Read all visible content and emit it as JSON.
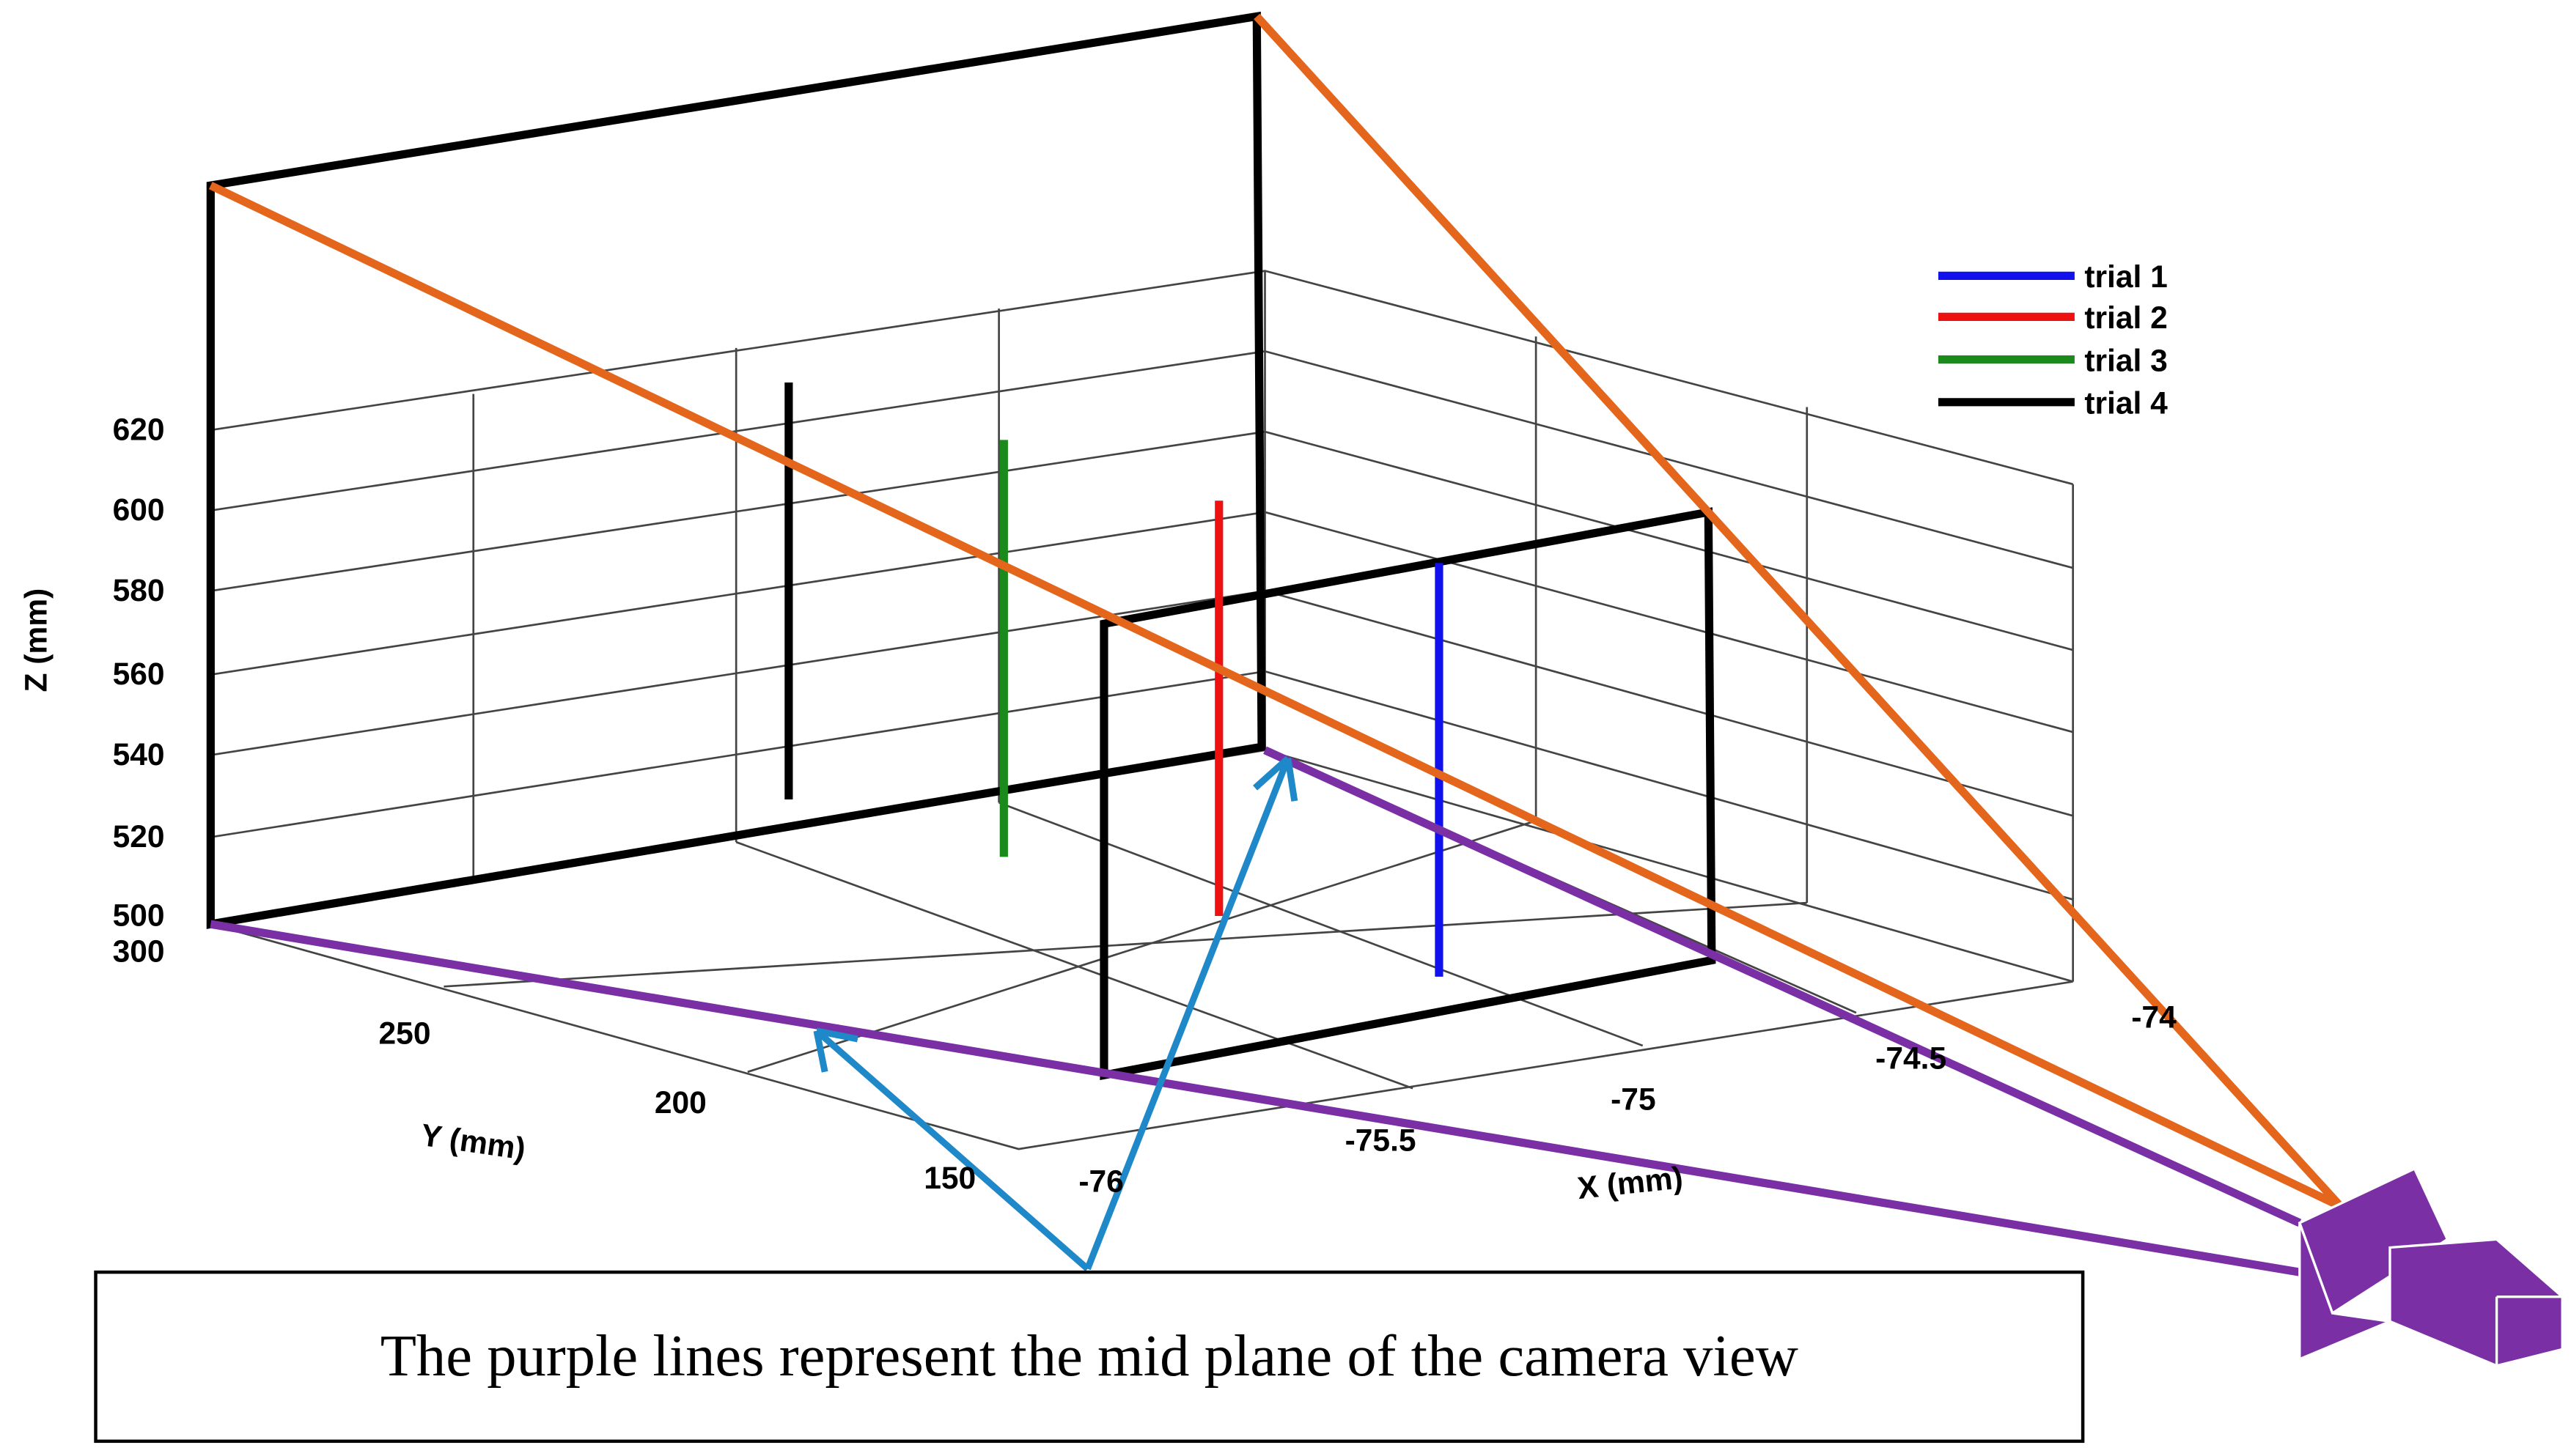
{
  "axes": {
    "z_label": "Z (mm)",
    "y_label": "Y (mm)",
    "x_label": "X (mm)",
    "z_ticks": [
      "620",
      "600",
      "580",
      "560",
      "540",
      "520",
      "500"
    ],
    "y_ticks": [
      "300",
      "250",
      "200",
      "150"
    ],
    "x_ticks": [
      "-76",
      "-75.5",
      "-75",
      "-74.5",
      "-74"
    ]
  },
  "legend": [
    "trial 1",
    "trial 2",
    "trial 3",
    "trial 4"
  ],
  "annotation": "The purple lines represent the mid plane of the camera view"
}
